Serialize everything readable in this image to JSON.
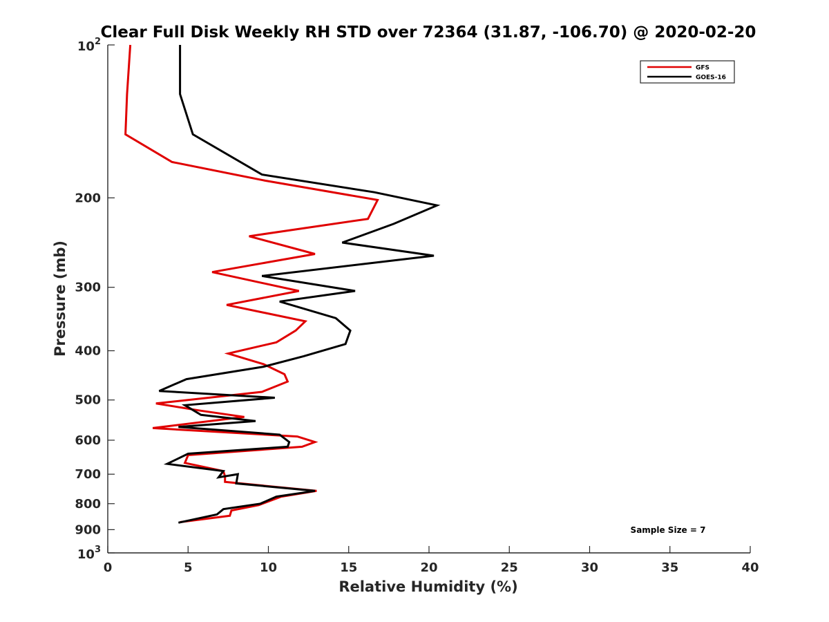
{
  "chart_data": {
    "type": "line",
    "title": "Clear Full Disk Weekly RH STD over 72364 (31.87, -106.70) @ 2020-02-20",
    "xlabel": "Relative Humidity (%)",
    "ylabel": "Pressure (mb)",
    "xlim": [
      0,
      40
    ],
    "ylim": [
      100,
      1000
    ],
    "y_scale": "log",
    "y_reversed": true,
    "x_ticks": [
      "0",
      "5",
      "10",
      "15",
      "20",
      "25",
      "30",
      "35",
      "40"
    ],
    "y_ticks": [
      {
        "value": 100,
        "base": "10",
        "exp": "2"
      },
      {
        "value": 200,
        "label": "200"
      },
      {
        "value": 300,
        "label": "300"
      },
      {
        "value": 400,
        "label": "400"
      },
      {
        "value": 500,
        "label": "500"
      },
      {
        "value": 600,
        "label": "600"
      },
      {
        "value": 700,
        "label": "700"
      },
      {
        "value": 800,
        "label": "800"
      },
      {
        "value": 900,
        "label": "900"
      },
      {
        "value": 1000,
        "base": "10",
        "exp": "3"
      }
    ],
    "legend_position": "top-right",
    "annotation": "Sample Size = 7",
    "series": [
      {
        "name": "GFS",
        "color": "#e00000",
        "points": [
          [
            1.4,
            100
          ],
          [
            1.2,
            125
          ],
          [
            1.1,
            150
          ],
          [
            4.0,
            170
          ],
          [
            9.8,
            185
          ],
          [
            16.8,
            202
          ],
          [
            16.2,
            220
          ],
          [
            8.8,
            238
          ],
          [
            12.9,
            258
          ],
          [
            6.5,
            280
          ],
          [
            11.9,
            305
          ],
          [
            7.4,
            325
          ],
          [
            12.3,
            350
          ],
          [
            11.7,
            365
          ],
          [
            10.5,
            385
          ],
          [
            7.5,
            405
          ],
          [
            9.7,
            425
          ],
          [
            11.0,
            445
          ],
          [
            11.2,
            460
          ],
          [
            9.6,
            482
          ],
          [
            3.0,
            508
          ],
          [
            5.8,
            525
          ],
          [
            8.5,
            540
          ],
          [
            2.8,
            568
          ],
          [
            11.8,
            590
          ],
          [
            12.9,
            605
          ],
          [
            12.1,
            618
          ],
          [
            5.0,
            642
          ],
          [
            4.8,
            665
          ],
          [
            7.2,
            690
          ],
          [
            7.3,
            707
          ],
          [
            7.3,
            725
          ],
          [
            13.0,
            755
          ],
          [
            10.8,
            775
          ],
          [
            9.4,
            805
          ],
          [
            7.7,
            825
          ],
          [
            7.6,
            845
          ],
          [
            4.5,
            870
          ]
        ]
      },
      {
        "name": "GOES-16",
        "color": "#000000",
        "points": [
          [
            4.5,
            100
          ],
          [
            4.5,
            125
          ],
          [
            5.3,
            150
          ],
          [
            9.6,
            180
          ],
          [
            16.6,
            195
          ],
          [
            20.5,
            207
          ],
          [
            17.8,
            225
          ],
          [
            14.6,
            245
          ],
          [
            20.3,
            260
          ],
          [
            9.6,
            285
          ],
          [
            15.4,
            305
          ],
          [
            10.7,
            320
          ],
          [
            14.2,
            345
          ],
          [
            15.1,
            365
          ],
          [
            14.8,
            388
          ],
          [
            12.2,
            410
          ],
          [
            9.7,
            430
          ],
          [
            4.9,
            455
          ],
          [
            3.2,
            480
          ],
          [
            10.4,
            495
          ],
          [
            4.8,
            512
          ],
          [
            5.8,
            535
          ],
          [
            9.2,
            550
          ],
          [
            4.4,
            565
          ],
          [
            10.7,
            585
          ],
          [
            11.3,
            605
          ],
          [
            11.2,
            618
          ],
          [
            5.0,
            638
          ],
          [
            3.7,
            668
          ],
          [
            7.2,
            690
          ],
          [
            6.9,
            710
          ],
          [
            8.1,
            700
          ],
          [
            8.0,
            730
          ],
          [
            12.9,
            755
          ],
          [
            10.5,
            775
          ],
          [
            9.5,
            800
          ],
          [
            7.2,
            820
          ],
          [
            6.8,
            840
          ],
          [
            4.4,
            872
          ]
        ]
      }
    ]
  }
}
